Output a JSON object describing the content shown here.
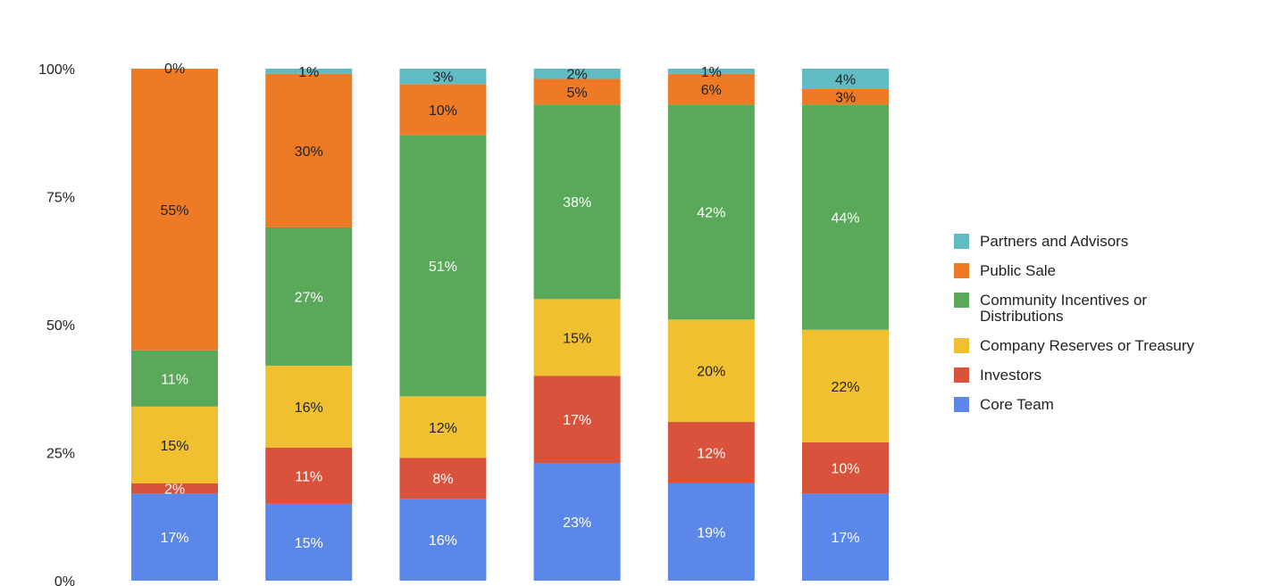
{
  "chart_data": {
    "type": "bar",
    "stacked": true,
    "normalized": true,
    "title": "",
    "xlabel": "",
    "ylabel": "",
    "ylim": [
      0,
      100
    ],
    "yticks": [
      "0%",
      "25%",
      "50%",
      "75%",
      "100%"
    ],
    "categories": [
      "",
      "",
      "",
      "",
      "",
      ""
    ],
    "legend_position": "right",
    "series": [
      {
        "name": "Core Team",
        "color": "#5b87e8",
        "label_color": "#ffffff",
        "values": [
          17,
          15,
          16,
          23,
          19,
          17
        ]
      },
      {
        "name": "Investors",
        "color": "#d9533c",
        "label_color": "#ffffff",
        "values": [
          2,
          11,
          8,
          17,
          12,
          10
        ]
      },
      {
        "name": "Company Reserves or Treasury",
        "color": "#f0c030",
        "label_color": "#222222",
        "values": [
          15,
          16,
          12,
          15,
          20,
          22
        ]
      },
      {
        "name": "Community Incentives or Distributions",
        "color": "#5aa85a",
        "label_color": "#ffffff",
        "values": [
          11,
          27,
          51,
          38,
          42,
          44
        ]
      },
      {
        "name": "Public Sale",
        "color": "#ef7a26",
        "label_color": "#222222",
        "values": [
          55,
          30,
          10,
          5,
          6,
          3
        ]
      },
      {
        "name": "Partners and Advisors",
        "color": "#5fbcc4",
        "label_color": "#222222",
        "values": [
          0,
          1,
          3,
          2,
          1,
          4
        ]
      }
    ],
    "legend_lines": {
      "Community Incentives or Distributions": [
        "Community Incentives or",
        "Distributions"
      ]
    }
  }
}
